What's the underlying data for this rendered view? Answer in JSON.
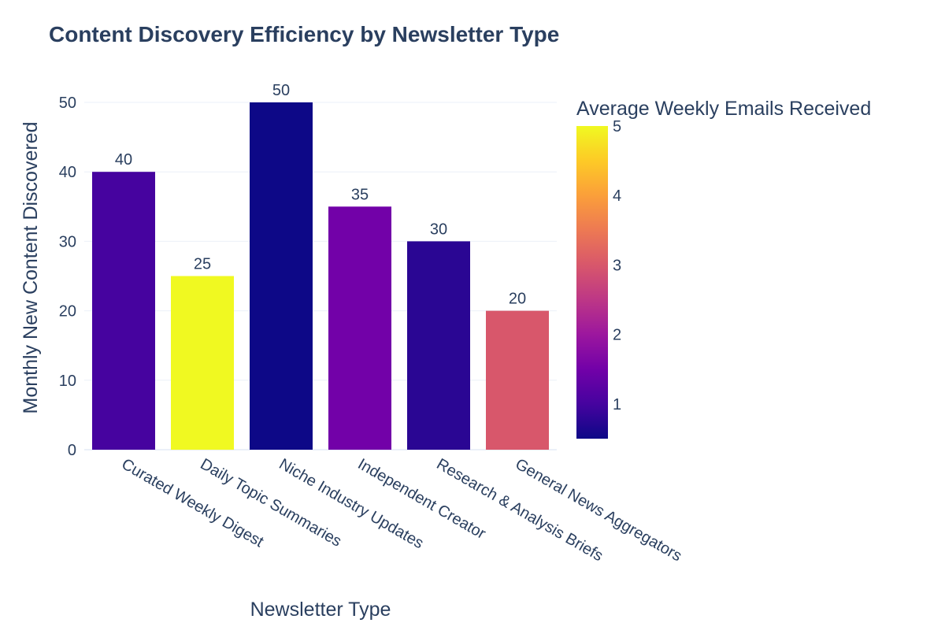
{
  "chart_data": {
    "type": "bar",
    "title": "Content Discovery Efficiency by Newsletter Type",
    "xlabel": "Newsletter Type",
    "ylabel": "Monthly New Content Discovered",
    "categories": [
      "Curated Weekly Digest",
      "Daily Topic Summaries",
      "Niche Industry Updates",
      "Independent Creator",
      "Research & Analysis Briefs",
      "General News Aggregators"
    ],
    "values": [
      40,
      25,
      50,
      35,
      30,
      20
    ],
    "data_labels": [
      "40",
      "25",
      "50",
      "35",
      "30",
      "20"
    ],
    "color_values": [
      1,
      5,
      0.5,
      1.5,
      0.75,
      3
    ],
    "colorscale": "Plasma",
    "colorbar": {
      "title": "Average Weekly Emails Received",
      "range": [
        0.5,
        5
      ],
      "ticks": [
        "1",
        "2",
        "3",
        "4",
        "5"
      ]
    },
    "ylim": [
      0,
      50
    ],
    "yticks": [
      "0",
      "10",
      "20",
      "30",
      "40",
      "50"
    ],
    "grid": true
  }
}
